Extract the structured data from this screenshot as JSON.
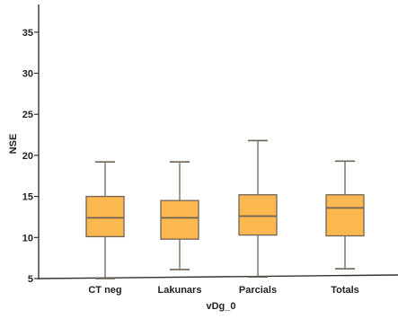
{
  "chart_data": {
    "type": "boxplot",
    "title": "",
    "xlabel": "vDg_0",
    "ylabel": "NSE",
    "ylim": [
      5,
      38
    ],
    "yticks": [
      5,
      10,
      15,
      20,
      25,
      30,
      35
    ],
    "categories": [
      "CT neg",
      "Lakunars",
      "Parcials",
      "Totals"
    ],
    "boxes": [
      {
        "category": "CT neg",
        "whisker_low": 5.0,
        "q1": 10.1,
        "median": 12.4,
        "q3": 15.0,
        "whisker_high": 19.2
      },
      {
        "category": "Lakunars",
        "whisker_low": 6.1,
        "q1": 9.8,
        "median": 12.4,
        "q3": 14.5,
        "whisker_high": 19.2
      },
      {
        "category": "Parcials",
        "whisker_low": 5.2,
        "q1": 10.3,
        "median": 12.6,
        "q3": 15.2,
        "whisker_high": 21.8
      },
      {
        "category": "Totals",
        "whisker_low": 6.2,
        "q1": 10.2,
        "median": 13.6,
        "q3": 15.2,
        "whisker_high": 19.3
      }
    ],
    "box_color": "#FBB850",
    "box_edge_color": "#6E6455",
    "grid": false,
    "legend": false
  }
}
